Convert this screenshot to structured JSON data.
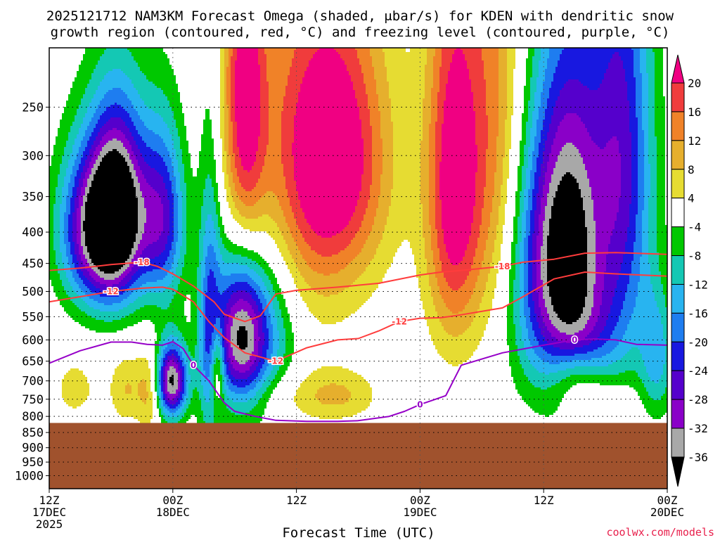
{
  "chart_data": {
    "type": "heatmap",
    "title_line1": "2025121712 NAM3KM Forecast Omega (shaded, μbar/s) for KDEN with dendritic snow",
    "title_line2": "growth region (contoured, red, °C) and freezing level (contoured, purple, °C)",
    "xlabel": "Forecast Time (UTC)",
    "credit": "coolwx.com/models",
    "x_ticks": [
      {
        "hour": 0,
        "l1": "12Z",
        "l2": "17DEC",
        "l3": "2025"
      },
      {
        "hour": 12,
        "l1": "00Z",
        "l2": "18DEC",
        "l3": ""
      },
      {
        "hour": 24,
        "l1": "12Z",
        "l2": "",
        "l3": ""
      },
      {
        "hour": 36,
        "l1": "00Z",
        "l2": "19DEC",
        "l3": ""
      },
      {
        "hour": 48,
        "l1": "12Z",
        "l2": "",
        "l3": ""
      },
      {
        "hour": 60,
        "l1": "00Z",
        "l2": "20DEC",
        "l3": ""
      }
    ],
    "xlim": [
      0,
      60
    ],
    "y_ticks": [
      250,
      300,
      350,
      400,
      450,
      500,
      550,
      600,
      650,
      700,
      750,
      800,
      850,
      900,
      950,
      1000
    ],
    "ylim_hpa": [
      1050,
      200
    ],
    "ground_level_hpa": 820,
    "colorbar": {
      "levels": [
        -36,
        -32,
        -28,
        -24,
        -20,
        -16,
        -12,
        -8,
        -4,
        4,
        8,
        12,
        16,
        20
      ],
      "colors": [
        "#000000",
        "#a8a8a8",
        "#8a00c8",
        "#5500cc",
        "#1818e0",
        "#1e7df0",
        "#28b4f0",
        "#14c8b4",
        "#00c800",
        "#ffffff",
        "#e6dc32",
        "#e6af2d",
        "#f08228",
        "#f03c3c",
        "#f00082"
      ],
      "tick_labels": [
        "20",
        "16",
        "12",
        "8",
        "4",
        "-4",
        "-8",
        "-12",
        "-16",
        "-20",
        "-24",
        "-28",
        "-32",
        "-36"
      ]
    },
    "contours": {
      "minus18": {
        "label": "-18",
        "color": "#ff3c3c",
        "hours": [
          0,
          3,
          6,
          9,
          10.5,
          12,
          14,
          16,
          17,
          19,
          20.5,
          22,
          24,
          28,
          32,
          36,
          38,
          40,
          44,
          46,
          49,
          52,
          55,
          60
        ],
        "hpa": [
          462,
          458,
          452,
          448,
          455,
          468,
          490,
          520,
          545,
          560,
          548,
          505,
          498,
          492,
          485,
          470,
          465,
          462,
          455,
          448,
          443,
          433,
          432,
          435
        ]
      },
      "minus12": {
        "label": "-12",
        "color": "#ff3c3c",
        "hours": [
          0,
          3,
          6,
          9,
          11,
          12,
          14,
          15.5,
          17,
          19,
          22,
          25,
          28,
          30,
          32,
          34,
          36,
          38,
          40,
          44,
          46,
          49,
          52,
          55,
          60
        ],
        "hpa": [
          520,
          510,
          500,
          494,
          492,
          496,
          520,
          560,
          595,
          630,
          650,
          618,
          600,
          597,
          580,
          560,
          553,
          552,
          546,
          532,
          510,
          477,
          465,
          468,
          472
        ]
      },
      "freezing": {
        "label": "0",
        "color": "#9600c8",
        "hours": [
          0,
          3,
          6,
          8,
          9.5,
          11,
          12,
          13,
          14,
          15.5,
          17,
          18,
          20,
          22,
          25,
          28,
          30,
          33,
          34.5,
          36,
          37.5,
          38.5,
          40,
          44,
          48,
          51,
          53,
          55,
          57,
          60
        ],
        "hpa": [
          655,
          625,
          605,
          605,
          610,
          612,
          604,
          620,
          660,
          700,
          760,
          785,
          800,
          812,
          815,
          815,
          813,
          800,
          785,
          765,
          750,
          740,
          660,
          630,
          612,
          600,
          598,
          600,
          610,
          612
        ]
      }
    },
    "features": [
      {
        "sign": -1,
        "hour": 6.8,
        "hpa": 370,
        "ht": 1.9,
        "hp": 95,
        "peak": -37
      },
      {
        "sign": -1,
        "hour": 4.2,
        "hpa": 395,
        "ht": 2.3,
        "hp": 85,
        "peak": -31
      },
      {
        "sign": -1,
        "hour": 11.0,
        "hpa": 380,
        "ht": 1.6,
        "hp": 90,
        "peak": -25
      },
      {
        "sign": -1,
        "hour": 11.9,
        "hpa": 700,
        "ht": 1.1,
        "hp": 70,
        "peak": -37
      },
      {
        "sign": -1,
        "hour": 18.6,
        "hpa": 590,
        "ht": 1.9,
        "hp": 125,
        "peak": -37
      },
      {
        "sign": -1,
        "hour": 15.6,
        "hpa": 560,
        "ht": 0.8,
        "hp": 220,
        "peak": -17
      },
      {
        "sign": -1,
        "hour": 22.0,
        "hpa": 580,
        "ht": 2.0,
        "hp": 160,
        "peak": -10
      },
      {
        "sign": -1,
        "hour": 48.0,
        "hpa": 440,
        "ht": 2.5,
        "hp": 180,
        "peak": -27
      },
      {
        "sign": -1,
        "hour": 51.0,
        "hpa": 420,
        "ht": 2.0,
        "hp": 190,
        "peak": -25
      },
      {
        "sign": -1,
        "hour": 55.5,
        "hpa": 310,
        "ht": 2.2,
        "hp": 200,
        "peak": -26
      },
      {
        "sign": -1,
        "hour": 53.0,
        "hpa": 590,
        "ht": 2.5,
        "hp": 90,
        "peak": -9
      },
      {
        "sign": -1,
        "hour": 59.0,
        "hpa": 640,
        "ht": 1.2,
        "hp": 110,
        "peak": -13
      },
      {
        "sign": 1,
        "hour": 19.0,
        "hpa": 240,
        "ht": 1.4,
        "hp": 130,
        "peak": 20
      },
      {
        "sign": 1,
        "hour": 28.0,
        "hpa": 300,
        "ht": 3.6,
        "hp": 110,
        "peak": 20
      },
      {
        "sign": 1,
        "hour": 24.0,
        "hpa": 320,
        "ht": 4.5,
        "hp": 170,
        "peak": 12
      },
      {
        "sign": 1,
        "hour": 39.2,
        "hpa": 335,
        "ht": 1.9,
        "hp": 170,
        "peak": 23
      },
      {
        "sign": 1,
        "hour": 43.5,
        "hpa": 270,
        "ht": 2.4,
        "hp": 190,
        "peak": 14
      },
      {
        "sign": 1,
        "hour": 16.3,
        "hpa": 660,
        "ht": 0.5,
        "hp": 80,
        "peak": 19
      },
      {
        "sign": 1,
        "hour": 9.8,
        "hpa": 725,
        "ht": 0.8,
        "hp": 80,
        "peak": 10
      },
      {
        "sign": 1,
        "hour": 7.5,
        "hpa": 720,
        "ht": 1.2,
        "hp": 70,
        "peak": 8
      },
      {
        "sign": 1,
        "hour": 2.5,
        "hpa": 720,
        "ht": 1.5,
        "hp": 60,
        "peak": 6
      },
      {
        "sign": 1,
        "hour": 22.5,
        "hpa": 740,
        "ht": 3.5,
        "hp": 60,
        "peak": 7
      },
      {
        "sign": 1,
        "hour": 28.5,
        "hpa": 740,
        "ht": 2.5,
        "hp": 50,
        "peak": 7
      },
      {
        "sign": 1,
        "hour": 51.0,
        "hpa": 680,
        "ht": 1.8,
        "hp": 55,
        "peak": 10
      },
      {
        "sign": 1,
        "hour": 53.0,
        "hpa": 760,
        "ht": 2.6,
        "hp": 45,
        "peak": 6
      }
    ]
  }
}
